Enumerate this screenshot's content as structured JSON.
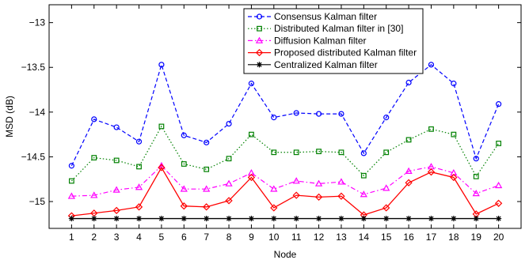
{
  "chart_data": {
    "type": "line",
    "title": "",
    "xlabel": "Node",
    "ylabel": "MSD (dB)",
    "xlim": [
      0,
      21
    ],
    "ylim": [
      -15.3,
      -12.8
    ],
    "xticks": [
      1,
      2,
      3,
      4,
      5,
      6,
      7,
      8,
      9,
      10,
      11,
      12,
      13,
      14,
      15,
      16,
      17,
      18,
      19,
      20
    ],
    "xtick_labels": [
      "1",
      "2",
      "3",
      "4",
      "5",
      "6",
      "7",
      "8",
      "9",
      "10",
      "11",
      "12",
      "13",
      "14",
      "15",
      "16",
      "17",
      "18",
      "19",
      "20"
    ],
    "yticks": [
      -13,
      -13.5,
      -14,
      -14.5,
      -15
    ],
    "ytick_labels": [
      "−13",
      "−13.5",
      "−14",
      "−14.5",
      "−15"
    ],
    "grid": false,
    "legend_position": "top-right",
    "x": [
      1,
      2,
      3,
      4,
      5,
      6,
      7,
      8,
      9,
      10,
      11,
      12,
      13,
      14,
      15,
      16,
      17,
      18,
      19,
      20
    ],
    "series": [
      {
        "name": "Consensus Kalman filter",
        "color": "#0000ff",
        "line": "dashed",
        "marker": "circle",
        "values": [
          -14.6,
          -14.08,
          -14.17,
          -14.33,
          -13.47,
          -14.26,
          -14.34,
          -14.13,
          -13.68,
          -14.06,
          -14.01,
          -14.02,
          -14.02,
          -14.46,
          -14.06,
          -13.67,
          -13.47,
          -13.68,
          -14.52,
          -13.91
        ]
      },
      {
        "name": "Distributed Kalman filter in [30]",
        "color": "#008000",
        "line": "dotted",
        "marker": "square",
        "values": [
          -14.77,
          -14.51,
          -14.54,
          -14.61,
          -14.16,
          -14.58,
          -14.64,
          -14.52,
          -14.25,
          -14.45,
          -14.45,
          -14.44,
          -14.45,
          -14.71,
          -14.45,
          -14.31,
          -14.19,
          -14.25,
          -14.72,
          -14.35
        ]
      },
      {
        "name": "Diffusion Kalman filter",
        "color": "#ff00ff",
        "line": "dashdot",
        "marker": "triangle",
        "values": [
          -14.94,
          -14.93,
          -14.87,
          -14.84,
          -14.6,
          -14.86,
          -14.86,
          -14.8,
          -14.68,
          -14.86,
          -14.77,
          -14.8,
          -14.78,
          -14.92,
          -14.85,
          -14.66,
          -14.61,
          -14.68,
          -14.91,
          -14.82
        ]
      },
      {
        "name": "Proposed distributed Kalman filter",
        "color": "#ff0000",
        "line": "solid",
        "marker": "diamond",
        "values": [
          -15.16,
          -15.13,
          -15.1,
          -15.06,
          -14.62,
          -15.05,
          -15.06,
          -14.99,
          -14.73,
          -15.07,
          -14.93,
          -14.95,
          -14.94,
          -15.15,
          -15.07,
          -14.79,
          -14.67,
          -14.73,
          -15.14,
          -15.02
        ]
      },
      {
        "name": "Centralized Kalman filter",
        "color": "#000000",
        "line": "solid",
        "marker": "star",
        "values": [
          -15.19,
          -15.19,
          -15.19,
          -15.19,
          -15.19,
          -15.19,
          -15.19,
          -15.19,
          -15.19,
          -15.19,
          -15.19,
          -15.19,
          -15.19,
          -15.19,
          -15.19,
          -15.19,
          -15.19,
          -15.19,
          -15.19,
          -15.19
        ]
      }
    ]
  }
}
